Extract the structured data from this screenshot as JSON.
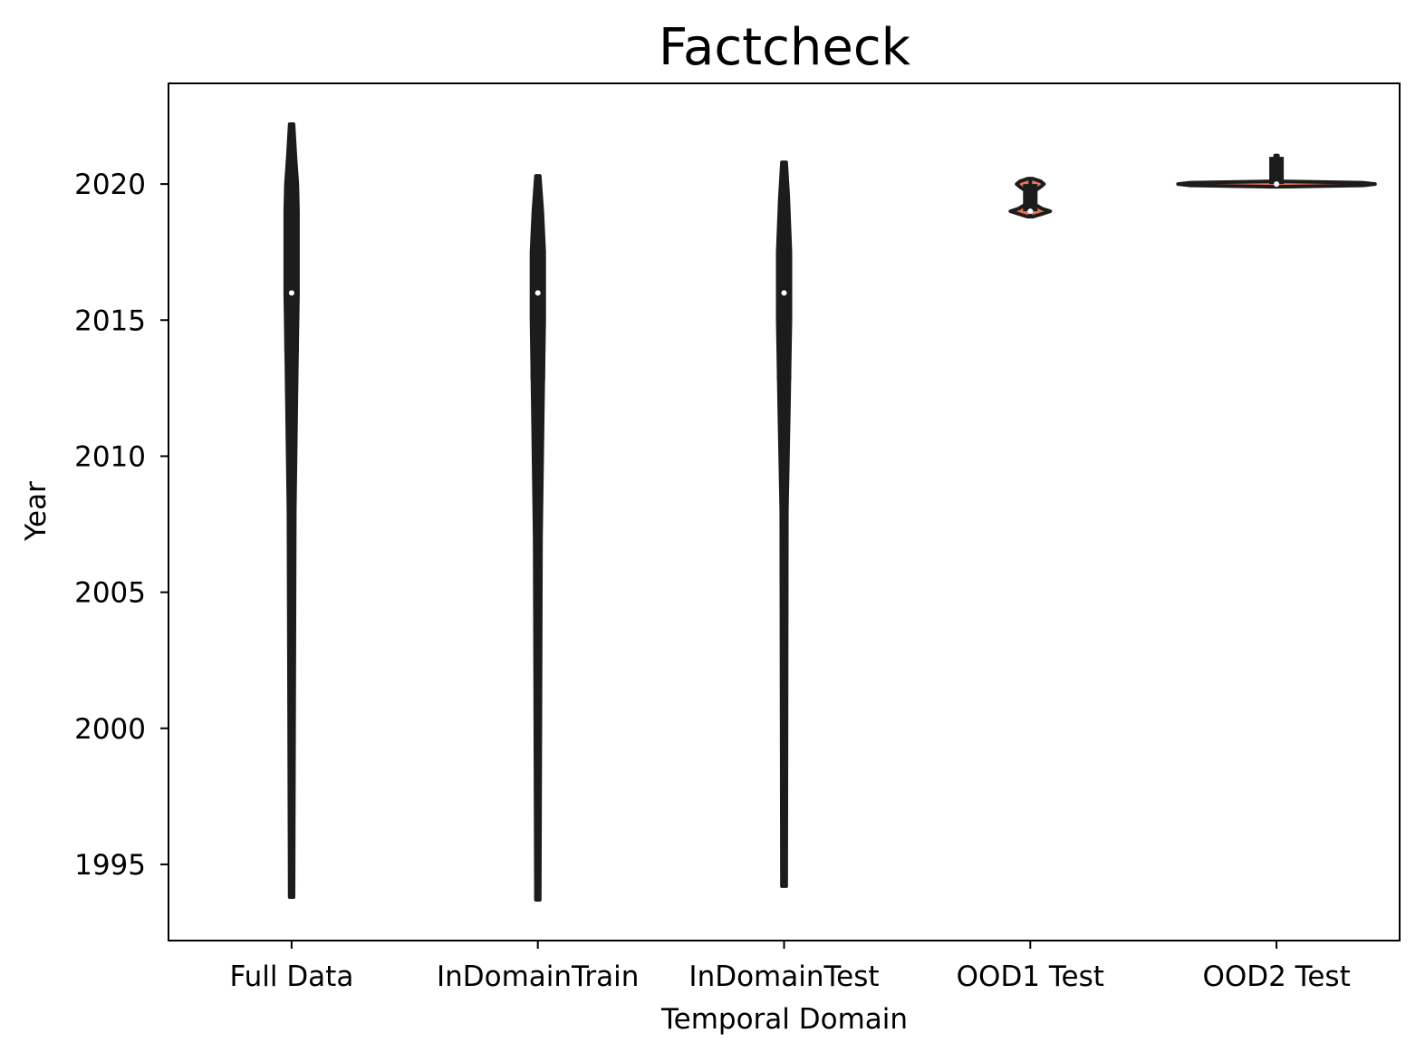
{
  "chart_data": {
    "type": "violin",
    "title": "Factcheck",
    "xlabel": "Temporal Domain",
    "ylabel": "Year",
    "ylim": [
      1992.2,
      2023.7
    ],
    "yticks": [
      1995,
      2000,
      2005,
      2010,
      2015,
      2020
    ],
    "categories": [
      "Full Data",
      "InDomainTrain",
      "InDomainTest",
      "OOD1 Test",
      "OOD2 Test"
    ],
    "series": [
      {
        "category": "Full Data",
        "min": 1993.8,
        "q1": 2013.8,
        "median": 2016,
        "q3": 2018.2,
        "max": 2022.2,
        "density": [
          [
            1993.8,
            0.03
          ],
          [
            2008,
            0.05
          ],
          [
            2013,
            0.08
          ],
          [
            2016,
            0.1
          ],
          [
            2019,
            0.1
          ],
          [
            2020,
            0.09
          ],
          [
            2021,
            0.06
          ],
          [
            2022.2,
            0.03
          ]
        ]
      },
      {
        "category": "InDomainTrain",
        "min": 1993.7,
        "q1": 2012.8,
        "median": 2016,
        "q3": 2017.2,
        "max": 2020.3,
        "density": [
          [
            1993.7,
            0.03
          ],
          [
            2007,
            0.05
          ],
          [
            2012,
            0.08
          ],
          [
            2015,
            0.1
          ],
          [
            2017.5,
            0.1
          ],
          [
            2019,
            0.07
          ],
          [
            2020.3,
            0.03
          ]
        ]
      },
      {
        "category": "InDomainTest",
        "min": 1994.2,
        "q1": 2012.8,
        "median": 2016,
        "q3": 2017.2,
        "max": 2020.8,
        "density": [
          [
            1994.2,
            0.03
          ],
          [
            2008,
            0.04
          ],
          [
            2012,
            0.07
          ],
          [
            2015,
            0.09
          ],
          [
            2017.5,
            0.09
          ],
          [
            2019.5,
            0.06
          ],
          [
            2020.8,
            0.03
          ]
        ]
      },
      {
        "category": "OOD1 Test",
        "min": 2018.8,
        "q1": 2019,
        "median": 2019,
        "q3": 2020,
        "max": 2020.2,
        "fill": "#e8735a",
        "density": [
          [
            2018.8,
            0.12
          ],
          [
            2018.9,
            0.55
          ],
          [
            2019.0,
            0.95
          ],
          [
            2019.1,
            0.55
          ],
          [
            2019.3,
            0.12
          ],
          [
            2019.5,
            0.08
          ],
          [
            2019.7,
            0.12
          ],
          [
            2019.9,
            0.5
          ],
          [
            2020.0,
            0.65
          ],
          [
            2020.1,
            0.5
          ],
          [
            2020.2,
            0.12
          ]
        ]
      },
      {
        "category": "OOD2 Test",
        "min": 2019.9,
        "q1": 2020,
        "median": 2020,
        "q3": 2021,
        "max": 2021.05,
        "fill": "#e8735a",
        "density": [
          [
            2019.9,
            0.2
          ],
          [
            2019.95,
            3.5
          ],
          [
            2020.0,
            4.0
          ],
          [
            2020.05,
            3.5
          ],
          [
            2020.1,
            0.2
          ],
          [
            2020.5,
            0.03
          ],
          [
            2021.05,
            0.03
          ]
        ]
      }
    ],
    "violin_color": "#1c1c1c",
    "median_color": "#ffffff",
    "grid": false,
    "legend": "none"
  }
}
